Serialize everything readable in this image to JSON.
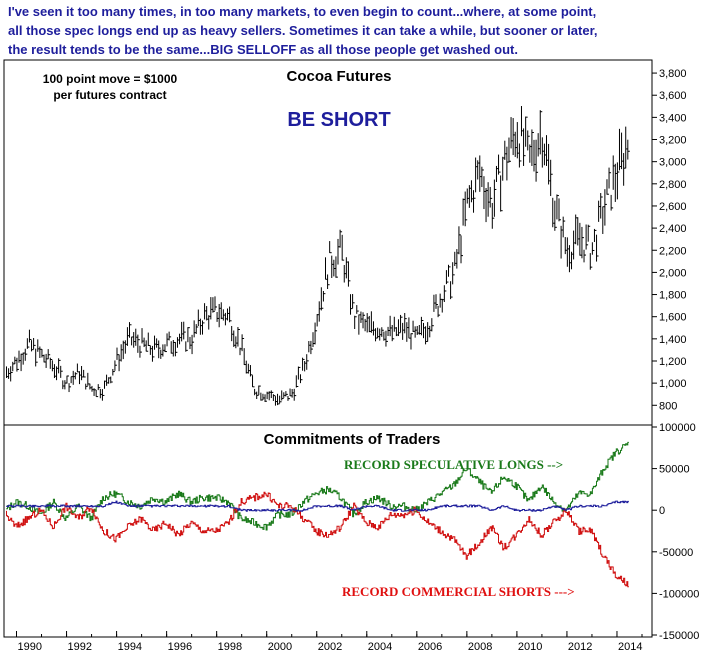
{
  "headline": [
    "I've seen it too many times, in too many markets, to even begin to count...where, at some point,",
    "all those spec longs end up as heavy sellers. Sometimes it can take a while, but sooner or later,",
    "the result tends to be the same...BIG SELLOFF as all those people get washed out."
  ],
  "colors": {
    "headline": "#1e1e9c",
    "price": "#000000",
    "speculative": "#1a7a1a",
    "commercial": "#d01010",
    "small_traders": "#1e1e9c"
  },
  "chart_data": [
    {
      "type": "line",
      "title": "Cocoa Futures",
      "note": [
        "100 point move = $1000",
        "per futures contract"
      ],
      "annotation": "BE SHORT",
      "xlim": [
        1989.5,
        2015.4
      ],
      "ylim": [
        640,
        3900
      ],
      "y_ticks": [
        800,
        1000,
        1200,
        1400,
        1600,
        1800,
        2000,
        2200,
        2400,
        2600,
        2800,
        3000,
        3200,
        3400,
        3600,
        3800
      ],
      "y_tick_labels": [
        "800",
        "1,000",
        "1,200",
        "1,400",
        "1,600",
        "1,800",
        "2,000",
        "2,200",
        "2,400",
        "2,600",
        "2,800",
        "3,000",
        "3,200",
        "3,400",
        "3,600",
        "3,800"
      ],
      "grid": false,
      "series": [
        {
          "x": [
            1989.6,
            1990.0,
            1990.5,
            1991.0,
            1991.5,
            1992.0,
            1992.5,
            1993.0,
            1993.5,
            1994.0,
            1994.5,
            1995.0,
            1995.5,
            1996.0,
            1996.5,
            1997.0,
            1997.5,
            1998.0,
            1998.5,
            1999.0,
            1999.5,
            2000.0,
            2000.5,
            2001.0,
            2001.5,
            2002.0,
            2002.5,
            2003.0,
            2003.5,
            2004.0,
            2004.5,
            2005.0,
            2005.5,
            2006.0,
            2006.5,
            2007.0,
            2007.5,
            2008.0,
            2008.5,
            2009.0,
            2009.5,
            2010.0,
            2010.5,
            2011.0,
            2011.5,
            2012.0,
            2012.5,
            2013.0,
            2013.5,
            2014.0,
            2014.5
          ],
          "values": [
            1100,
            1200,
            1350,
            1250,
            1150,
            1000,
            1100,
            950,
            950,
            1200,
            1400,
            1350,
            1300,
            1350,
            1400,
            1400,
            1600,
            1650,
            1600,
            1300,
            950,
            900,
            850,
            900,
            1150,
            1600,
            2100,
            2200,
            1600,
            1500,
            1500,
            1450,
            1500,
            1400,
            1550,
            1800,
            2000,
            2600,
            2900,
            2600,
            3000,
            3300,
            3000,
            3300,
            2600,
            2200,
            2300,
            2200,
            2600,
            2900,
            3200
          ]
        }
      ]
    },
    {
      "type": "line",
      "title": "Commitments of Traders",
      "xlim": [
        1989.5,
        2015.4
      ],
      "ylim": [
        -150000,
        100000
      ],
      "y_ticks": [
        -150000,
        -100000,
        -50000,
        0,
        50000,
        100000
      ],
      "y_tick_labels": [
        "-150000",
        "-100000",
        "-50000",
        "0",
        "50000",
        "100000"
      ],
      "x_ticks": [
        1990,
        1992,
        1994,
        1996,
        1998,
        2000,
        2002,
        2004,
        2006,
        2008,
        2010,
        2012,
        2014
      ],
      "x_tick_labels": [
        "1990",
        "1992",
        "1994",
        "1996",
        "1998",
        "2000",
        "2002",
        "2004",
        "2006",
        "2008",
        "2010",
        "2012",
        "2014"
      ],
      "annotations": [
        "RECORD SPECULATIVE LONGS -->",
        "RECORD COMMERCIAL SHORTS --->"
      ],
      "grid": false,
      "x": [
        1989.6,
        1990.0,
        1990.5,
        1991.0,
        1991.5,
        1992.0,
        1992.5,
        1993.0,
        1993.5,
        1994.0,
        1994.5,
        1995.0,
        1995.5,
        1996.0,
        1996.5,
        1997.0,
        1997.5,
        1998.0,
        1998.5,
        1999.0,
        1999.5,
        2000.0,
        2000.5,
        2001.0,
        2001.5,
        2002.0,
        2002.5,
        2003.0,
        2003.5,
        2004.0,
        2004.5,
        2005.0,
        2005.5,
        2006.0,
        2006.5,
        2007.0,
        2007.5,
        2008.0,
        2008.5,
        2009.0,
        2009.5,
        2010.0,
        2010.5,
        2011.0,
        2011.5,
        2012.0,
        2012.5,
        2013.0,
        2013.5,
        2014.0,
        2014.5
      ],
      "series": [
        {
          "color": "#1a7a1a",
          "values": [
            0,
            10000,
            5000,
            -5000,
            10000,
            -10000,
            5000,
            -10000,
            15000,
            20000,
            10000,
            5000,
            15000,
            10000,
            20000,
            10000,
            15000,
            15000,
            10000,
            -10000,
            -15000,
            -20000,
            -5000,
            -5000,
            10000,
            20000,
            25000,
            15000,
            -5000,
            10000,
            15000,
            5000,
            5000,
            0,
            10000,
            20000,
            30000,
            50000,
            35000,
            20000,
            40000,
            30000,
            10000,
            30000,
            10000,
            0,
            20000,
            20000,
            50000,
            70000,
            80000
          ]
        },
        {
          "color": "#d01010",
          "values": [
            -5000,
            -20000,
            -10000,
            0,
            -20000,
            5000,
            -10000,
            5000,
            -25000,
            -35000,
            -20000,
            -10000,
            -25000,
            -15000,
            -30000,
            -15000,
            -25000,
            -25000,
            -15000,
            10000,
            15000,
            20000,
            5000,
            5000,
            -10000,
            -25000,
            -30000,
            -20000,
            5000,
            -15000,
            -20000,
            -5000,
            -5000,
            0,
            -15000,
            -25000,
            -35000,
            -55000,
            -40000,
            -20000,
            -45000,
            -30000,
            -10000,
            -30000,
            -15000,
            0,
            -25000,
            -25000,
            -55000,
            -80000,
            -90000
          ]
        },
        {
          "color": "#1e1e9c",
          "values": [
            5000,
            5000,
            5000,
            5000,
            5000,
            5000,
            5000,
            5000,
            5000,
            10000,
            5000,
            5000,
            5000,
            5000,
            5000,
            5000,
            5000,
            5000,
            5000,
            0,
            0,
            0,
            0,
            0,
            0,
            5000,
            5000,
            5000,
            0,
            5000,
            5000,
            0,
            0,
            0,
            0,
            5000,
            5000,
            5000,
            5000,
            0,
            5000,
            0,
            0,
            0,
            5000,
            0,
            5000,
            5000,
            5000,
            10000,
            10000
          ]
        }
      ]
    }
  ]
}
